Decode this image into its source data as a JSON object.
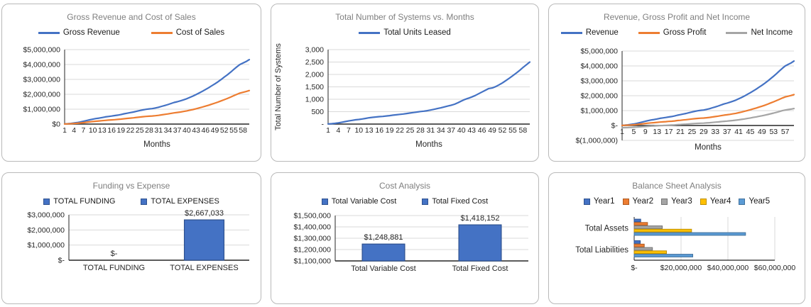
{
  "colors": {
    "blue": "#4472C4",
    "orange": "#ED7D31",
    "gray": "#A5A5A5",
    "yellow": "#FFC000",
    "light_blue": "#5B9BD5",
    "gridline": "#D9D9D9",
    "axis": "#262626",
    "title_text": "#7F7F7F",
    "panel_border": "#B9B9B9"
  },
  "chart_data": [
    {
      "type": "line",
      "title": "Gross Revenue and Cost of Sales",
      "xlabel": "Months",
      "x_count": 60,
      "x_tick_labels": [
        "1",
        "4",
        "7",
        "10",
        "13",
        "16",
        "19",
        "22",
        "25",
        "28",
        "31",
        "34",
        "37",
        "40",
        "43",
        "46",
        "49",
        "52",
        "55",
        "58"
      ],
      "ylim": [
        0,
        5000000
      ],
      "y_tick_labels": [
        "$0",
        "$1,000,000",
        "$2,000,000",
        "$3,000,000",
        "$4,000,000",
        "$5,000,000"
      ],
      "grid": true,
      "legend_position": "top",
      "series": [
        {
          "name": "Gross Revenue",
          "color": "#4472C4",
          "values": [
            10000,
            25000,
            45000,
            70000,
            100000,
            140000,
            185000,
            235000,
            285000,
            330000,
            370000,
            400000,
            440000,
            480000,
            510000,
            540000,
            570000,
            600000,
            640000,
            690000,
            730000,
            770000,
            810000,
            860000,
            910000,
            950000,
            990000,
            1020000,
            1040000,
            1080000,
            1130000,
            1190000,
            1250000,
            1310000,
            1380000,
            1450000,
            1500000,
            1560000,
            1630000,
            1700000,
            1790000,
            1880000,
            1980000,
            2090000,
            2200000,
            2320000,
            2440000,
            2570000,
            2700000,
            2840000,
            2990000,
            3150000,
            3310000,
            3480000,
            3660000,
            3840000,
            4000000,
            4100000,
            4200000,
            4330000
          ]
        },
        {
          "name": "Cost of Sales",
          "color": "#ED7D31",
          "values": [
            5000,
            13000,
            23000,
            36000,
            52000,
            73000,
            96000,
            122000,
            148000,
            172000,
            192000,
            208000,
            229000,
            250000,
            265000,
            281000,
            296000,
            312000,
            333000,
            359000,
            380000,
            400000,
            421000,
            447000,
            473000,
            494000,
            515000,
            530000,
            541000,
            562000,
            588000,
            619000,
            650000,
            681000,
            718000,
            754000,
            780000,
            811000,
            848000,
            884000,
            931000,
            978000,
            1030000,
            1087000,
            1144000,
            1206000,
            1269000,
            1336000,
            1404000,
            1477000,
            1555000,
            1638000,
            1721000,
            1810000,
            1903000,
            1997000,
            2080000,
            2132000,
            2184000,
            2252000
          ]
        }
      ]
    },
    {
      "type": "line",
      "title": "Total Number of Systems vs. Months",
      "xlabel": "Months",
      "ylabel": "Total Number of Systems",
      "x_count": 60,
      "x_tick_labels": [
        "1",
        "4",
        "7",
        "10",
        "13",
        "16",
        "19",
        "22",
        "25",
        "28",
        "31",
        "34",
        "37",
        "40",
        "43",
        "46",
        "49",
        "52",
        "55",
        "58"
      ],
      "ylim": [
        0,
        3000
      ],
      "y_tick_labels": [
        "-",
        "500",
        "1,000",
        "1,500",
        "2,000",
        "2,500",
        "3,000"
      ],
      "grid": true,
      "legend_position": "top",
      "series": [
        {
          "name": "Total Units Leased",
          "color": "#4472C4",
          "values": [
            5,
            15,
            30,
            50,
            75,
            100,
            125,
            150,
            170,
            185,
            205,
            230,
            255,
            270,
            285,
            300,
            310,
            325,
            340,
            360,
            375,
            390,
            405,
            425,
            445,
            465,
            485,
            505,
            520,
            540,
            565,
            595,
            625,
            655,
            690,
            725,
            760,
            800,
            860,
            930,
            990,
            1040,
            1090,
            1150,
            1220,
            1290,
            1360,
            1430,
            1455,
            1510,
            1580,
            1660,
            1750,
            1845,
            1945,
            2050,
            2160,
            2280,
            2390,
            2500
          ]
        }
      ]
    },
    {
      "type": "line",
      "title": "Revenue, Gross Profit and Net Income",
      "xlabel": "Months",
      "x_count": 60,
      "x_tick_labels": [
        "1",
        "5",
        "9",
        "13",
        "17",
        "21",
        "25",
        "29",
        "33",
        "37",
        "41",
        "45",
        "49",
        "53",
        "57"
      ],
      "ylim": [
        -1000000,
        5000000
      ],
      "y_tick_labels": [
        "$(1,000,000)",
        "$-",
        "$1,000,000",
        "$2,000,000",
        "$3,000,000",
        "$4,000,000",
        "$5,000,000"
      ],
      "grid": true,
      "legend_position": "top",
      "series": [
        {
          "name": "Revenue",
          "color": "#4472C4",
          "values": [
            10000,
            25000,
            45000,
            70000,
            100000,
            140000,
            185000,
            235000,
            285000,
            330000,
            370000,
            400000,
            440000,
            480000,
            510000,
            540000,
            570000,
            600000,
            640000,
            690000,
            730000,
            770000,
            810000,
            860000,
            910000,
            950000,
            990000,
            1020000,
            1040000,
            1080000,
            1130000,
            1190000,
            1250000,
            1310000,
            1380000,
            1450000,
            1500000,
            1560000,
            1630000,
            1700000,
            1790000,
            1880000,
            1980000,
            2090000,
            2200000,
            2320000,
            2440000,
            2570000,
            2700000,
            2840000,
            2990000,
            3150000,
            3310000,
            3480000,
            3660000,
            3840000,
            4000000,
            4100000,
            4200000,
            4330000
          ]
        },
        {
          "name": "Gross Profit",
          "color": "#ED7D31",
          "values": [
            5000,
            12000,
            22000,
            34000,
            48000,
            67000,
            89000,
            113000,
            137000,
            158000,
            178000,
            192000,
            211000,
            230000,
            245000,
            259000,
            274000,
            288000,
            307000,
            331000,
            350000,
            370000,
            389000,
            413000,
            437000,
            456000,
            475000,
            490000,
            499000,
            518000,
            542000,
            571000,
            600000,
            629000,
            662000,
            696000,
            720000,
            749000,
            782000,
            816000,
            859000,
            902000,
            950000,
            1003000,
            1056000,
            1114000,
            1171000,
            1234000,
            1296000,
            1363000,
            1435000,
            1512000,
            1589000,
            1670000,
            1757000,
            1843000,
            1920000,
            1968000,
            2016000,
            2078000
          ]
        },
        {
          "name": "Net Income",
          "color": "#A5A5A5",
          "values": [
            -147000,
            -143000,
            -136000,
            -129000,
            -120000,
            -108000,
            -95000,
            -80000,
            -65000,
            -52000,
            -40000,
            -31000,
            -19000,
            -7000,
            2000,
            11000,
            20000,
            29000,
            40000,
            55000,
            67000,
            79000,
            91000,
            106000,
            121000,
            133000,
            145000,
            154000,
            159000,
            171000,
            186000,
            204000,
            222000,
            240000,
            260000,
            282000,
            296000,
            314000,
            335000,
            356000,
            383000,
            409000,
            439000,
            472000,
            505000,
            541000,
            576000,
            615000,
            654000,
            695000,
            740000,
            787000,
            835000,
            885000,
            939000,
            993000,
            1040000,
            1070000,
            1100000,
            1138000
          ]
        }
      ]
    },
    {
      "type": "bar",
      "title": "Funding vs Expense",
      "categories": [
        "TOTAL FUNDING",
        "TOTAL EXPENSES"
      ],
      "values": [
        0,
        2667033
      ],
      "data_labels": [
        "$-",
        "$2,667,033"
      ],
      "legend": [
        "TOTAL FUNDING",
        "TOTAL EXPENSES"
      ],
      "ylim": [
        0,
        3000000
      ],
      "y_tick_labels": [
        "$-",
        "$1,000,000",
        "$2,000,000",
        "$3,000,000"
      ],
      "grid": true,
      "bar_color": "#4472C4",
      "bar_border": "#2F528F"
    },
    {
      "type": "bar",
      "title": "Cost Analysis",
      "categories": [
        "Total Variable Cost",
        "Total Fixed Cost"
      ],
      "values": [
        1248881,
        1418152
      ],
      "data_labels": [
        "$1,248,881",
        "$1,418,152"
      ],
      "legend": [
        "Total Variable Cost",
        "Total Fixed Cost"
      ],
      "ylim": [
        1100000,
        1500000
      ],
      "y_tick_labels": [
        "$1,100,000",
        "$1,200,000",
        "$1,300,000",
        "$1,400,000",
        "$1,500,000"
      ],
      "grid": true,
      "bar_color": "#4472C4",
      "bar_border": "#2F528F"
    },
    {
      "type": "hbar",
      "title": "Balance Sheet Analysis",
      "categories": [
        "Total Assets",
        "Total Liabilities"
      ],
      "xlim": [
        0,
        60000000
      ],
      "x_tick_labels": [
        "$-",
        "$20,000,000",
        "$40,000,000",
        "$60,000,000"
      ],
      "grid": true,
      "series": [
        {
          "name": "Year1",
          "color": "#4472C4",
          "border": "#2F528F",
          "values": [
            2800000,
            2600000
          ]
        },
        {
          "name": "Year2",
          "color": "#ED7D31",
          "border": "#AE5A21",
          "values": [
            5700000,
            4300000
          ]
        },
        {
          "name": "Year3",
          "color": "#A5A5A5",
          "border": "#747474",
          "values": [
            12000000,
            7800000
          ]
        },
        {
          "name": "Year4",
          "color": "#FFC000",
          "border": "#BF9000",
          "values": [
            24500000,
            13800000
          ]
        },
        {
          "name": "Year5",
          "color": "#5B9BD5",
          "border": "#41719C",
          "values": [
            47500000,
            25000000
          ]
        }
      ]
    }
  ]
}
